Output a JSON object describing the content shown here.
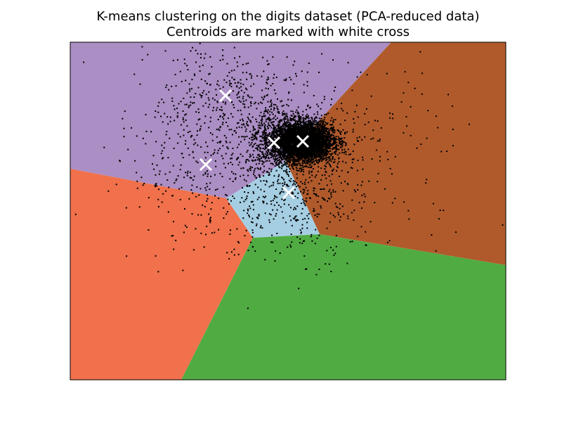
{
  "chart_data": {
    "type": "scatter",
    "title_lines": [
      "K-means clustering on the digits dataset (PCA-reduced data)",
      "Centroids are marked with white cross"
    ],
    "xlabel": "",
    "ylabel": "",
    "xlim": [
      -31,
      31
    ],
    "ylim": [
      -31,
      17
    ],
    "ticks": "none",
    "grid": false,
    "legend": "none",
    "regions": {
      "description": "decision regions of 5 visible clusters (Voronoi of centroids)",
      "colors": {
        "purple": "#ab8ec4",
        "brown": "#b05a2c",
        "light_blue": "#a6cee3",
        "orange": "#f0714b",
        "green": "#50ac42"
      }
    },
    "centroids": [
      {
        "x": -8.9,
        "y": 9.4
      },
      {
        "x": -2.0,
        "y": 2.7
      },
      {
        "x": 2.1,
        "y": 2.9
      },
      {
        "x": -11.7,
        "y": -0.4
      },
      {
        "x": 0.1,
        "y": -4.4
      }
    ],
    "point_groups": [
      {
        "center": [
          2.0,
          2.9
        ],
        "spread": [
          2.2,
          1.4
        ],
        "count": 4500
      },
      {
        "center": [
          -2.0,
          2.7
        ],
        "spread": [
          2.6,
          2.6
        ],
        "count": 450
      },
      {
        "center": [
          -9.0,
          9.0
        ],
        "spread": [
          5.2,
          4.6
        ],
        "count": 300
      },
      {
        "center": [
          -11.5,
          -0.5
        ],
        "spread": [
          5.5,
          5.5
        ],
        "count": 280
      },
      {
        "center": [
          0.5,
          -4.5
        ],
        "spread": [
          5.0,
          4.6
        ],
        "count": 380
      },
      {
        "center": [
          5.5,
          3.0
        ],
        "spread": [
          8.5,
          5.5
        ],
        "count": 260
      },
      {
        "center": [
          0.0,
          0.0
        ],
        "spread": [
          14.0,
          9.0
        ],
        "count": 120
      }
    ],
    "marker_colors": {
      "points": "#000000",
      "centroids": "#ffffff"
    }
  }
}
